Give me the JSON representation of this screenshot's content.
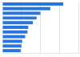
{
  "chart_data": {
    "type": "bar",
    "orientation": "horizontal",
    "categories": [
      null,
      null,
      null,
      null,
      null,
      null,
      null,
      null,
      null,
      null,
      null
    ],
    "values": [
      80,
      63,
      50,
      45,
      40,
      34,
      33,
      30,
      26,
      25,
      24
    ],
    "color": "#2876dd",
    "xlim": [
      0,
      100
    ],
    "xticks": [
      0,
      25,
      50,
      75,
      100
    ],
    "grid": true,
    "tick_labels": false
  }
}
